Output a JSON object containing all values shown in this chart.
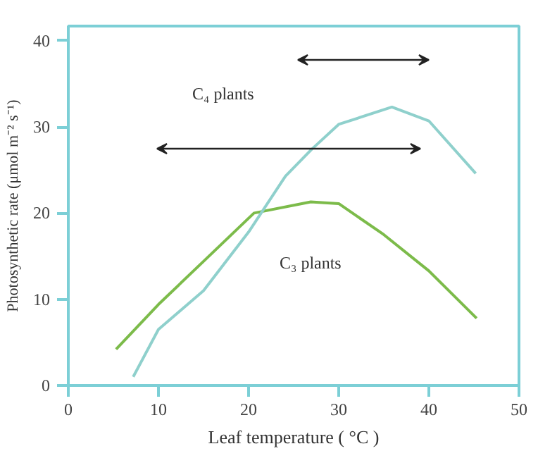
{
  "chart_data": {
    "type": "line",
    "xlabel": "Leaf temperature ( °C )",
    "ylabel": "Photosynthetic rate (μmol m⁻² s⁻¹)",
    "xlim": [
      0,
      50
    ],
    "ylim": [
      0,
      41.7
    ],
    "xticks": [
      0,
      10,
      20,
      30,
      40,
      50
    ],
    "yticks": [
      0,
      10,
      20,
      30,
      40
    ],
    "grid": false,
    "marker": "none",
    "line_style": "solid",
    "series": [
      {
        "color": "#7cbb4a",
        "x": [
          5.3,
          10,
          15,
          20.6,
          26.9,
          30,
          35,
          40,
          45.3
        ],
        "values": [
          4.2,
          9.4,
          14.4,
          20.0,
          21.3,
          21.1,
          17.5,
          13.3,
          7.8
        ]
      },
      {
        "color": "#8fd0cc",
        "x": [
          7.2,
          10,
          15,
          20,
          24.1,
          27,
          30,
          35.9,
          40,
          45.2
        ],
        "values": [
          1.0,
          6.5,
          11.0,
          17.8,
          24.3,
          27.4,
          30.3,
          32.3,
          30.7,
          24.6
        ]
      }
    ],
    "annotations": [
      "C₃ plants",
      "C₄ plants"
    ]
  }
}
